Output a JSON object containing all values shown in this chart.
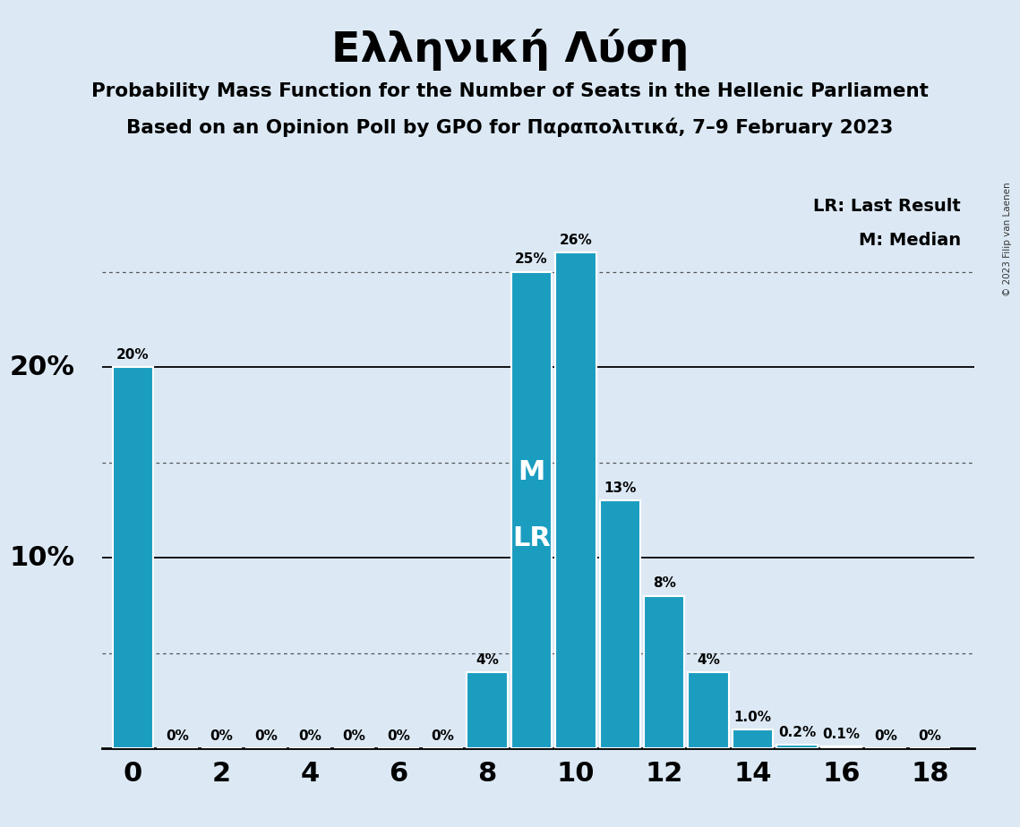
{
  "title": "Ελληνική Λύση",
  "subtitle1": "Probability Mass Function for the Number of Seats in the Hellenic Parliament",
  "subtitle2": "Based on an Opinion Poll by GPO for Παραπολιτικά, 7–9 February 2023",
  "copyright": "© 2023 Filip van Laenen",
  "seats": [
    0,
    1,
    2,
    3,
    4,
    5,
    6,
    7,
    8,
    9,
    10,
    11,
    12,
    13,
    14,
    15,
    16,
    17,
    18
  ],
  "probabilities": [
    0.2,
    0.0,
    0.0,
    0.0,
    0.0,
    0.0,
    0.0,
    0.0,
    0.04,
    0.25,
    0.26,
    0.13,
    0.08,
    0.04,
    0.01,
    0.002,
    0.001,
    0.0,
    0.0
  ],
  "prob_labels": [
    "20%",
    "0%",
    "0%",
    "0%",
    "0%",
    "0%",
    "0%",
    "0%",
    "4%",
    "25%",
    "26%",
    "13%",
    "8%",
    "4%",
    "1.0%",
    "0.2%",
    "0.1%",
    "0%",
    "0%"
  ],
  "bar_color": "#1b9dc0",
  "background_color": "#dce9f5",
  "median_seat": 9,
  "last_result_seat": 9,
  "solid_gridlines": [
    0.1,
    0.2
  ],
  "dotted_gridlines": [
    0.05,
    0.15,
    0.25
  ],
  "legend_lr": "LR: Last Result",
  "legend_m": "M: Median",
  "ylim": [
    0,
    0.295
  ],
  "xlim": [
    -0.7,
    19.0
  ],
  "ylabel_20_pos": 0.2,
  "ylabel_10_pos": 0.1
}
